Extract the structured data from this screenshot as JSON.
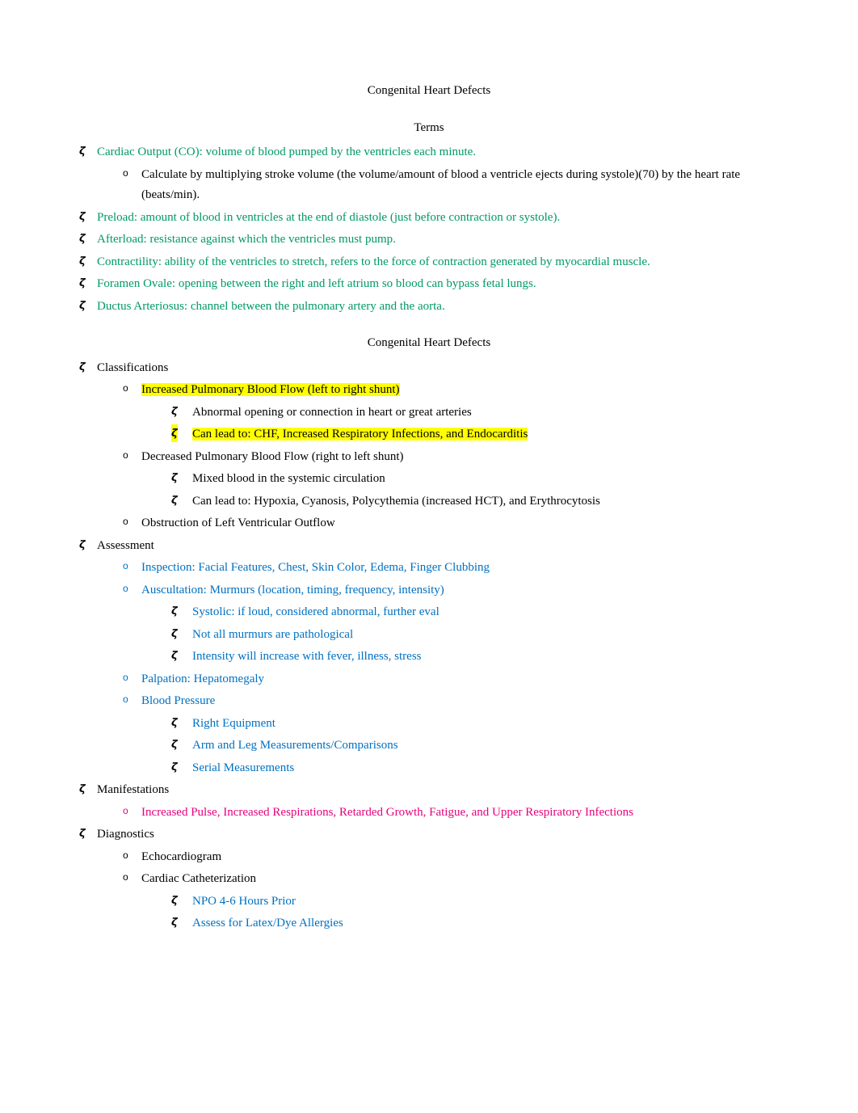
{
  "colors": {
    "green": "#009966",
    "blue": "#0070c0",
    "pink": "#e6007e",
    "black": "#000000",
    "highlight": "#ffff00",
    "background": "#ffffff"
  },
  "typography": {
    "font_family": "Georgia, 'Times New Roman', serif",
    "font_size_pt": 12,
    "line_height": 1.7
  },
  "page_title": "Congenital Heart Defects",
  "terms_heading": "Terms",
  "terms": [
    {
      "name": "Cardiac Output (CO):",
      "def": " volume of blood pumped by the ventricles each minute.",
      "sub": "Calculate by multiplying stroke volume (the volume/amount of blood a ventricle ejects during systole)(70) by the heart rate (beats/min)."
    },
    {
      "name": "Preload:",
      "def": "  amount of blood in ventricles at the end of diastole (just before contraction or systole)."
    },
    {
      "name": "Afterload:",
      "def": " resistance against which the ventricles must pump."
    },
    {
      "name": "Contractility:",
      "def": " ability of the ventricles to stretch, refers to the force of contraction generated by myocardial muscle."
    },
    {
      "name": "Foramen Ovale:",
      "def": " opening between the right and left atrium so blood can bypass fetal lungs."
    },
    {
      "name": "Ductus Arteriosus:",
      "def": "  channel between the pulmonary artery and the aorta."
    }
  ],
  "section2_heading": "Congenital Heart Defects",
  "classifications": {
    "label": "Classifications",
    "items": [
      {
        "text": "Increased Pulmonary Blood Flow (left to right shunt)",
        "highlighted": true,
        "sub": [
          {
            "text": "Abnormal opening or connection in heart or great arteries",
            "highlighted": false
          },
          {
            "text": "Can lead to: CHF, Increased Respiratory Infections, and Endocarditis",
            "highlighted": true
          }
        ]
      },
      {
        "text": "Decreased Pulmonary Blood Flow (right to left shunt)",
        "sub": [
          {
            "text": "Mixed blood in the systemic circulation"
          },
          {
            "text": "Can lead to: Hypoxia, Cyanosis, Polycythemia (increased HCT), and Erythrocytosis"
          }
        ]
      },
      {
        "text": "Obstruction of Left Ventricular Outflow"
      }
    ]
  },
  "assessment": {
    "label": "Assessment",
    "items": [
      {
        "text": "Inspection: Facial Features, Chest, Skin Color, Edema, Finger Clubbing"
      },
      {
        "text": "Auscultation: Murmurs (location, timing, frequency, intensity)",
        "sub": [
          {
            "text": "Systolic: if loud, considered abnormal, further eval"
          },
          {
            "text": "Not all murmurs are pathological"
          },
          {
            "text": "Intensity will increase with fever, illness, stress"
          }
        ]
      },
      {
        "text": "Palpation: Hepatomegaly"
      },
      {
        "text": "Blood Pressure",
        "sub": [
          {
            "text": "Right Equipment"
          },
          {
            "text": "Arm and Leg Measurements/Comparisons"
          },
          {
            "text": "Serial Measurements"
          }
        ]
      }
    ]
  },
  "manifestations": {
    "label": "Manifestations",
    "items": [
      {
        "text": "Increased Pulse, Increased Respirations, Retarded Growth, Fatigue, and Upper Respiratory Infections"
      }
    ]
  },
  "diagnostics": {
    "label": "Diagnostics",
    "items": [
      {
        "text": "Echocardiogram"
      },
      {
        "text": "Cardiac Catheterization",
        "sub": [
          {
            "text": "NPO 4-6 Hours Prior"
          },
          {
            "text": "Assess for Latex/Dye Allergies"
          }
        ]
      }
    ]
  }
}
